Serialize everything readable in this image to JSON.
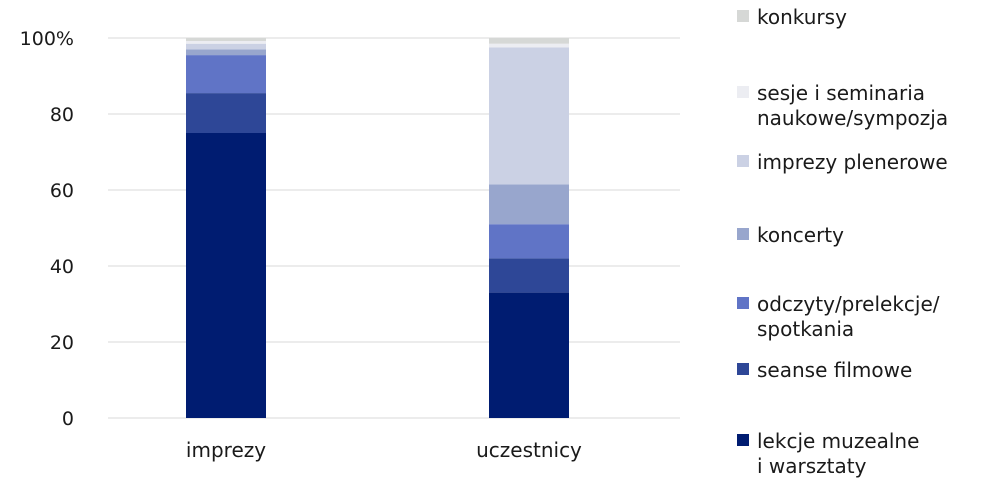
{
  "chart_data": {
    "type": "bar",
    "stacked": true,
    "categories": [
      "imprezy",
      "uczestnicy"
    ],
    "y_ticks": [
      "0",
      "20",
      "40",
      "60",
      "80",
      "100%"
    ],
    "ylim": [
      0,
      100
    ],
    "grid": true,
    "legend_position": "right",
    "series": [
      {
        "name": "lekcje muzealne i warsztaty",
        "legend_lines": [
          "lekcje muzealne",
          "i warsztaty"
        ],
        "color": "#001c71",
        "values": [
          75,
          33
        ]
      },
      {
        "name": "seanse filmowe",
        "legend_lines": [
          "seanse filmowe"
        ],
        "color": "#2e4797",
        "values": [
          10.5,
          9
        ]
      },
      {
        "name": "odczyty/prelekcje/spotkania",
        "legend_lines": [
          "odczyty/prelekcje/",
          "spotkania"
        ],
        "color": "#6074c6",
        "values": [
          10,
          9
        ]
      },
      {
        "name": "koncerty",
        "legend_lines": [
          "koncerty"
        ],
        "color": "#98a6cd",
        "values": [
          1.5,
          10.5
        ]
      },
      {
        "name": "imprezy plenerowe",
        "legend_lines": [
          "imprezy plenerowe"
        ],
        "color": "#cbd1e4",
        "values": [
          1.5,
          36
        ]
      },
      {
        "name": "sesje i seminaria naukowe/sympozja",
        "legend_lines": [
          "sesje i seminaria",
          "naukowe/sympozja"
        ],
        "color": "#ecedf2",
        "values": [
          0.7,
          1
        ]
      },
      {
        "name": "konkursy",
        "legend_lines": [
          "konkursy"
        ],
        "color": "#d6d8d6",
        "values": [
          0.8,
          1.5
        ]
      }
    ]
  }
}
